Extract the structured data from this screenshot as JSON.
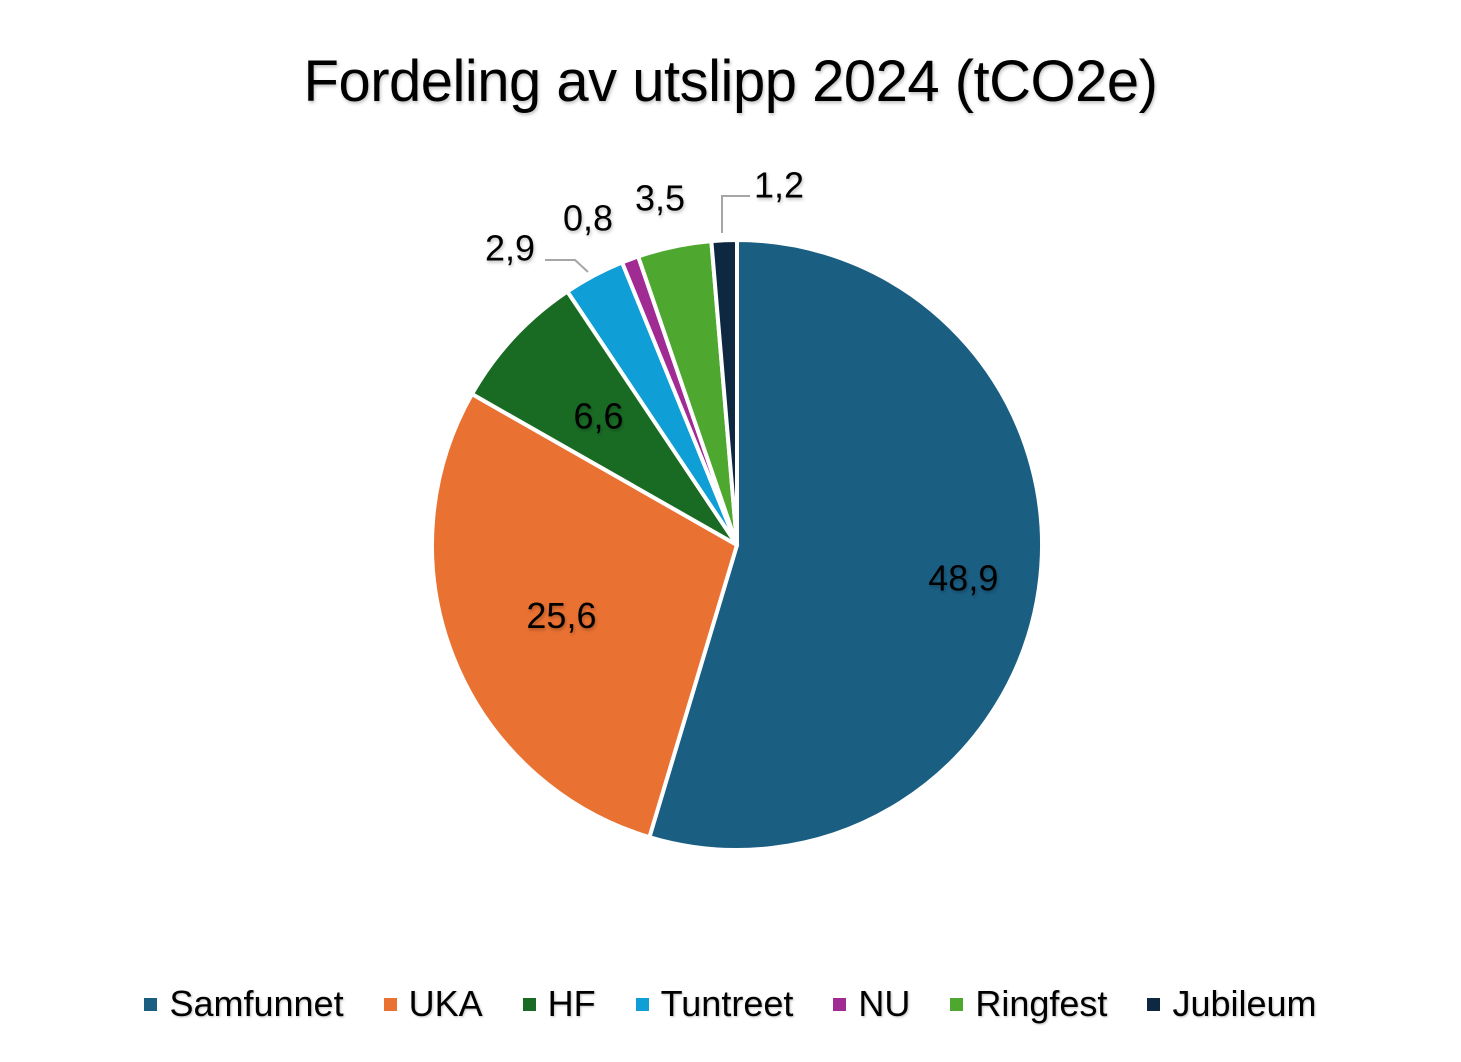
{
  "chart_data": {
    "type": "pie",
    "title": "Fordeling av utslipp 2024 (tCO2e)",
    "categories": [
      "Samfunnet",
      "UKA",
      "HF",
      "Tuntreet",
      "NU",
      "Ringfest",
      "Jubileum"
    ],
    "values": [
      48.9,
      25.6,
      6.6,
      2.9,
      0.8,
      3.5,
      1.2
    ],
    "labels": [
      "48,9",
      "25,6",
      "6,6",
      "2,9",
      "0,8",
      "3,5",
      "1,2"
    ],
    "colors": [
      "#1a5e82",
      "#e97132",
      "#196b24",
      "#0f9ed5",
      "#a02b93",
      "#4ea72e",
      "#0e2841"
    ],
    "legend_position": "bottom",
    "start_direction": "top",
    "direction": "clockwise"
  }
}
